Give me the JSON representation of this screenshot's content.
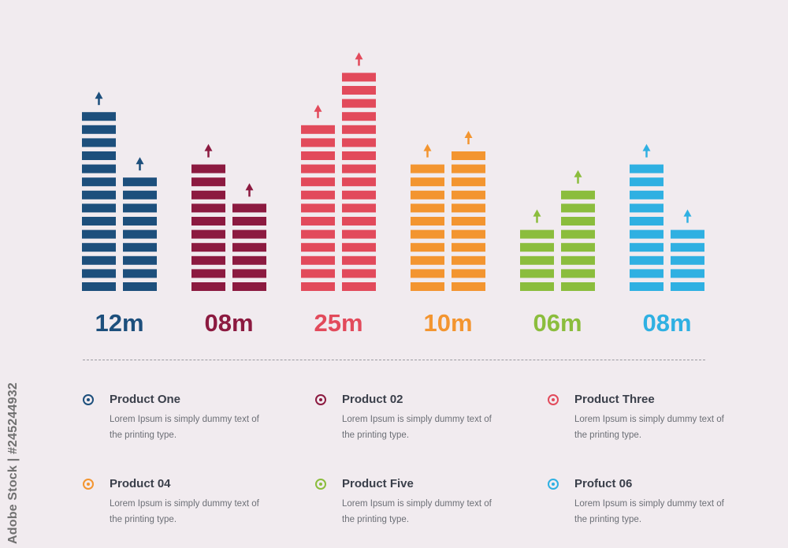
{
  "chart_data": {
    "type": "bar",
    "title": "",
    "xlabel": "",
    "ylabel": "",
    "groups": [
      {
        "label": "12m",
        "color": "#1d4f7c",
        "values": [
          14,
          9
        ]
      },
      {
        "label": "08m",
        "color": "#8c1a40",
        "values": [
          10,
          7
        ]
      },
      {
        "label": "25m",
        "color": "#e24a5b",
        "values": [
          13,
          17
        ]
      },
      {
        "label": "10m",
        "color": "#f39530",
        "values": [
          10,
          11
        ]
      },
      {
        "label": "06m",
        "color": "#8bbd3d",
        "values": [
          5,
          8
        ]
      },
      {
        "label": "08m",
        "color": "#2fb0e2",
        "values": [
          10,
          5
        ]
      }
    ],
    "unit": "segments",
    "grid": false,
    "arrows_on_bars": true
  },
  "legend": [
    {
      "title": "Product One",
      "description": "Lorem Ipsum is simply dummy text of the printing type.",
      "color": "#1d4f7c"
    },
    {
      "title": "Product 02",
      "description": "Lorem Ipsum is simply dummy text of the printing type.",
      "color": "#8c1a40"
    },
    {
      "title": "Product Three",
      "description": "Lorem Ipsum is simply dummy text of the printing type.",
      "color": "#e24a5b"
    },
    {
      "title": "Product 04",
      "description": "Lorem Ipsum is simply dummy text of the printing type.",
      "color": "#f39530"
    },
    {
      "title": "Product Five",
      "description": "Lorem Ipsum is simply dummy text of the printing type.",
      "color": "#8bbd3d"
    },
    {
      "title": "Profuct 06",
      "description": "Lorem Ipsum is simply dummy text of the printing type.",
      "color": "#2fb0e2"
    }
  ],
  "watermark": "Adobe Stock | #245244932"
}
